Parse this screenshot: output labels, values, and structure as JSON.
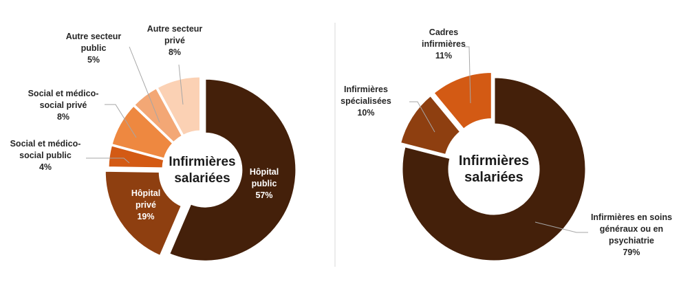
{
  "chart_data": [
    {
      "type": "pie",
      "donut": true,
      "center_label": [
        "Infirmières",
        "salariées"
      ],
      "slices": [
        {
          "label": [
            "Hôpital",
            "public"
          ],
          "value": 57,
          "display": "57%",
          "color": "#44200a"
        },
        {
          "label": [
            "Hôpital",
            "privé"
          ],
          "value": 19,
          "display": "19%",
          "color": "#8e3f10"
        },
        {
          "label": [
            "Social et médico-",
            "social public"
          ],
          "value": 4,
          "display": "4%",
          "color": "#d35a14"
        },
        {
          "label": [
            "Social et médico-",
            "social privé"
          ],
          "value": 8,
          "display": "8%",
          "color": "#ee8840"
        },
        {
          "label": [
            "Autre secteur",
            "public"
          ],
          "value": 5,
          "display": "5%",
          "color": "#f3a775"
        },
        {
          "label": [
            "Autre secteur",
            "privé"
          ],
          "value": 8,
          "display": "8%",
          "color": "#fbd1b4"
        }
      ]
    },
    {
      "type": "pie",
      "donut": true,
      "center_label": [
        "Infirmières",
        "salariées"
      ],
      "slices": [
        {
          "label": [
            "Infirmières en soins",
            "généraux ou en",
            "psychiatrie"
          ],
          "value": 79,
          "display": "79%",
          "color": "#44200a"
        },
        {
          "label": [
            "Infirmières",
            "spécialisées"
          ],
          "value": 10,
          "display": "10%",
          "color": "#8e3f10"
        },
        {
          "label": [
            "Cadres",
            "infirmières"
          ],
          "value": 11,
          "display": "11%",
          "color": "#d35a14"
        }
      ]
    }
  ]
}
